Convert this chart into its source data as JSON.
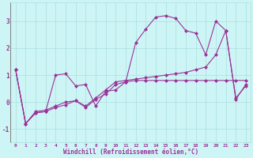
{
  "xlabel": "Windchill (Refroidissement éolien,°C)",
  "bg_color": "#cef5f5",
  "grid_color": "#aadddd",
  "line_color": "#993399",
  "xlim": [
    -0.5,
    23.5
  ],
  "ylim": [
    -1.5,
    3.7
  ],
  "yticks": [
    -1,
    0,
    1,
    2,
    3
  ],
  "xticks": [
    0,
    1,
    2,
    3,
    4,
    5,
    6,
    7,
    8,
    9,
    10,
    11,
    12,
    13,
    14,
    15,
    16,
    17,
    18,
    19,
    20,
    21,
    22,
    23
  ],
  "series": [
    [
      1.2,
      -0.8,
      -0.4,
      -0.35,
      1.0,
      1.05,
      0.6,
      0.65,
      -0.15,
      0.4,
      0.45,
      0.75,
      2.2,
      2.7,
      3.15,
      3.2,
      3.1,
      2.65,
      2.55,
      1.75,
      3.0,
      2.65,
      0.15,
      0.6
    ],
    [
      1.2,
      -0.8,
      -0.4,
      -0.35,
      -0.2,
      -0.1,
      0.05,
      -0.2,
      0.1,
      0.3,
      0.65,
      0.75,
      0.8,
      0.8,
      0.8,
      0.8,
      0.8,
      0.8,
      0.8,
      0.8,
      0.8,
      0.8,
      0.8,
      0.8
    ],
    [
      1.2,
      -0.8,
      -0.35,
      -0.3,
      -0.15,
      0.0,
      0.05,
      -0.15,
      0.15,
      0.45,
      0.75,
      0.8,
      0.85,
      0.9,
      0.95,
      1.0,
      1.05,
      1.1,
      1.2,
      1.3,
      1.75,
      2.65,
      0.1,
      0.65
    ]
  ]
}
